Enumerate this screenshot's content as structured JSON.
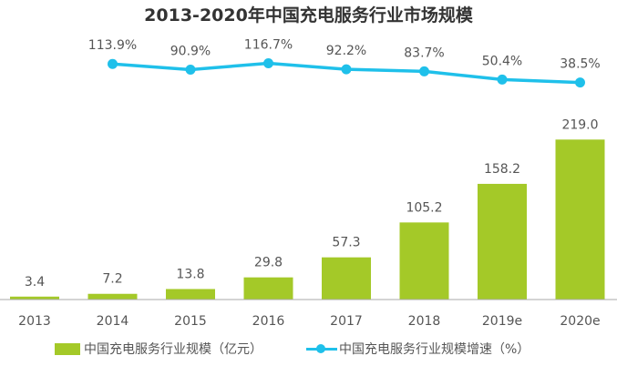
{
  "chart_data": {
    "type": "bar+line",
    "title": "2013-2020年中国充电服务行业市场规模",
    "categories": [
      "2013",
      "2014",
      "2015",
      "2016",
      "2017",
      "2018",
      "2019e",
      "2020e"
    ],
    "series": [
      {
        "name": "中国充电服务行业规模（亿元）",
        "type": "bar",
        "color": "#a4c928",
        "values": [
          3.4,
          7.2,
          13.8,
          29.8,
          57.3,
          105.2,
          158.2,
          219.0
        ],
        "labels": [
          "3.4",
          "7.2",
          "13.8",
          "29.8",
          "57.3",
          "105.2",
          "158.2",
          "219.0"
        ]
      },
      {
        "name": "中国充电服务行业规模增速（%）",
        "type": "line",
        "color": "#1fc0ea",
        "values": [
          null,
          113.9,
          90.9,
          116.7,
          92.2,
          83.7,
          50.4,
          38.5
        ],
        "labels": [
          "",
          "113.9%",
          "90.9%",
          "116.7%",
          "92.2%",
          "83.7%",
          "50.4%",
          "38.5%"
        ]
      }
    ],
    "legend": "bottom",
    "grid": false
  }
}
